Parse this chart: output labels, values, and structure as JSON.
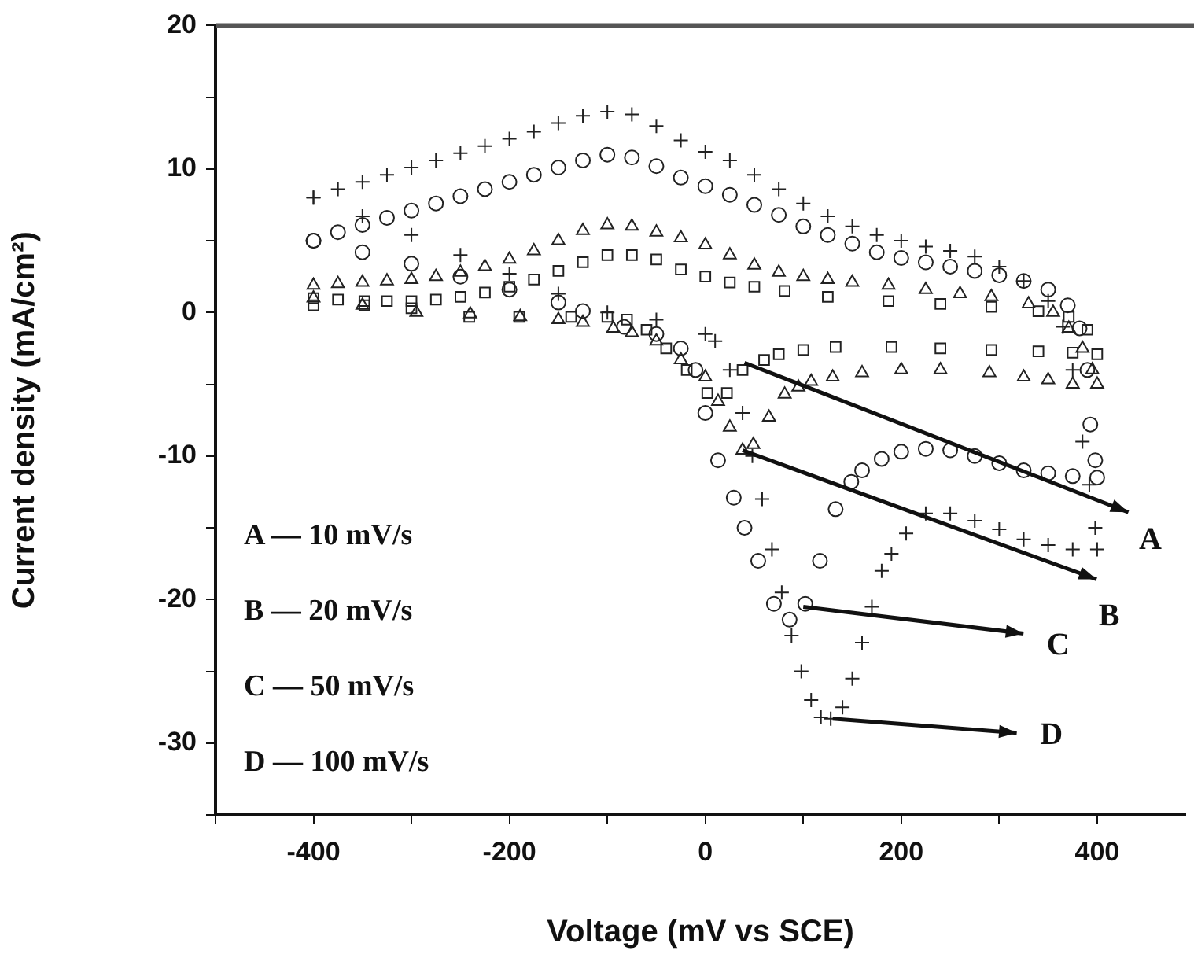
{
  "chart_data": {
    "type": "scatter",
    "xlabel": "Voltage (mV vs SCE)",
    "ylabel": "Current density (mA/cm²)",
    "xlim": [
      -500,
      490
    ],
    "xticks": [
      {
        "value": -500,
        "label": null
      },
      -400,
      {
        "value": -300,
        "label": null
      },
      -200,
      {
        "value": -100,
        "label": null
      },
      0,
      {
        "value": 100,
        "label": null
      },
      200,
      {
        "value": 300,
        "label": null
      },
      400
    ],
    "ylim": [
      -35,
      20
    ],
    "yticks": [
      {
        "value": -35,
        "label": null
      },
      -30,
      {
        "value": -25,
        "label": null
      },
      -20,
      {
        "value": -15,
        "label": null
      },
      -10,
      {
        "value": -5,
        "label": null
      },
      0,
      {
        "value": 5,
        "label": null
      },
      10,
      {
        "value": 15,
        "label": null
      },
      20
    ],
    "grid": false,
    "legend": false,
    "series": [
      {
        "color": "#222222",
        "marker": "square",
        "x": [
          -400,
          -375,
          -348,
          -325,
          -300,
          -275,
          -250,
          -225,
          -200,
          -175,
          -150,
          -125,
          -100,
          -75,
          -50,
          -25,
          0,
          25,
          50,
          81,
          125,
          187,
          240,
          292,
          340,
          371,
          390,
          400,
          375,
          340,
          292,
          240,
          190,
          133,
          100,
          75,
          60,
          38,
          22,
          2,
          -19,
          -40,
          -60,
          -80,
          -100,
          -137,
          -190,
          -241,
          -300,
          -348,
          -400
        ],
        "values": [
          1,
          0.9,
          0.8,
          0.8,
          0.8,
          0.9,
          1.1,
          1.4,
          1.8,
          2.3,
          2.9,
          3.5,
          4,
          4,
          3.7,
          3,
          2.5,
          2.1,
          1.8,
          1.5,
          1.1,
          0.8,
          0.6,
          0.4,
          0.1,
          -0.3,
          -1.2,
          -2.9,
          -2.8,
          -2.7,
          -2.6,
          -2.5,
          -2.4,
          -2.4,
          -2.6,
          -2.9,
          -3.3,
          -4,
          -5.6,
          -5.6,
          -4,
          -2.5,
          -1.2,
          -0.5,
          -0.3,
          -0.3,
          -0.3,
          -0.3,
          0.3,
          0.5,
          0.5
        ]
      },
      {
        "color": "#222222",
        "marker": "triangle",
        "x": [
          -400,
          -375,
          -350,
          -325,
          -300,
          -275,
          -250,
          -225,
          -200,
          -175,
          -150,
          -125,
          -100,
          -75,
          -50,
          -25,
          0,
          25,
          50,
          75,
          100,
          125,
          150,
          187,
          225,
          260,
          292,
          330,
          355,
          371,
          385,
          395,
          400,
          375,
          350,
          325,
          290,
          240,
          200,
          160,
          130,
          108,
          95,
          81,
          65,
          49,
          38,
          25,
          13,
          0,
          -25,
          -50,
          -75,
          -94,
          -125,
          -150,
          -189,
          -240,
          -295,
          -350,
          -400
        ],
        "values": [
          1.9,
          2,
          2.1,
          2.2,
          2.3,
          2.5,
          2.8,
          3.2,
          3.7,
          4.3,
          5,
          5.7,
          6.1,
          6,
          5.6,
          5.2,
          4.7,
          4,
          3.3,
          2.8,
          2.5,
          2.3,
          2.1,
          1.9,
          1.6,
          1.3,
          1.1,
          0.6,
          0,
          -1.1,
          -2.5,
          -4,
          -5,
          -5,
          -4.7,
          -4.5,
          -4.2,
          -4,
          -4,
          -4.2,
          -4.5,
          -4.8,
          -5.2,
          -5.7,
          -7.3,
          -9.2,
          -9.6,
          -8,
          -6.2,
          -4.5,
          -3.3,
          -2,
          -1.4,
          -1.1,
          -0.7,
          -0.5,
          -0.3,
          -0.1,
          0,
          0.5,
          1
        ]
      },
      {
        "color": "#222222",
        "marker": "circle",
        "x": [
          -400,
          -375,
          -350,
          -325,
          -300,
          -275,
          -250,
          -225,
          -200,
          -175,
          -150,
          -125,
          -100,
          -75,
          -50,
          -25,
          0,
          25,
          50,
          75,
          100,
          125,
          150,
          175,
          200,
          225,
          250,
          275,
          300,
          325,
          350,
          370,
          382,
          390,
          393,
          398,
          400,
          375,
          350,
          325,
          300,
          275,
          250,
          225,
          200,
          180,
          160,
          149,
          133,
          117,
          102,
          86,
          70,
          54,
          40,
          29,
          13,
          0,
          -10,
          -25,
          -50,
          -83,
          -125,
          -150,
          -200,
          -250,
          -300,
          -350,
          -400
        ],
        "values": [
          5,
          5.6,
          6.1,
          6.6,
          7.1,
          7.6,
          8.1,
          8.6,
          9.1,
          9.6,
          10.1,
          10.6,
          11,
          10.8,
          10.2,
          9.4,
          8.8,
          8.2,
          7.5,
          6.8,
          6,
          5.4,
          4.8,
          4.2,
          3.8,
          3.5,
          3.2,
          2.9,
          2.6,
          2.2,
          1.6,
          0.5,
          -1.1,
          -4,
          -7.8,
          -10.3,
          -11.5,
          -11.4,
          -11.2,
          -11,
          -10.5,
          -10,
          -9.6,
          -9.5,
          -9.7,
          -10.2,
          -11,
          -11.8,
          -13.7,
          -17.3,
          -20.3,
          -21.4,
          -20.3,
          -17.3,
          -15,
          -12.9,
          -10.3,
          -7,
          -4,
          -2.5,
          -1.5,
          -1,
          0.1,
          0.7,
          1.6,
          2.5,
          3.4,
          4.2,
          5
        ]
      },
      {
        "color": "#222222",
        "marker": "cross",
        "x": [
          -400,
          -375,
          -350,
          -325,
          -300,
          -275,
          -250,
          -225,
          -200,
          -175,
          -150,
          -125,
          -100,
          -75,
          -50,
          -25,
          0,
          25,
          50,
          75,
          100,
          125,
          150,
          175,
          200,
          225,
          250,
          275,
          300,
          325,
          350,
          365,
          375,
          385,
          392,
          398,
          400,
          375,
          350,
          325,
          300,
          275,
          250,
          225,
          205,
          190,
          180,
          170,
          160,
          150,
          140,
          128,
          118,
          108,
          98,
          88,
          78,
          68,
          58,
          48,
          38,
          25,
          10,
          0,
          -50,
          -100,
          -150,
          -200,
          -250,
          -300,
          -350,
          -400
        ],
        "values": [
          8,
          8.6,
          9.1,
          9.6,
          10.1,
          10.6,
          11.1,
          11.6,
          12.1,
          12.6,
          13.2,
          13.7,
          14,
          13.8,
          13,
          12,
          11.2,
          10.6,
          9.6,
          8.6,
          7.6,
          6.7,
          6,
          5.4,
          5,
          4.6,
          4.3,
          3.9,
          3.2,
          2.2,
          0.8,
          -1,
          -4,
          -9,
          -12,
          -15,
          -16.5,
          -16.5,
          -16.2,
          -15.8,
          -15.1,
          -14.5,
          -14,
          -14,
          -15.4,
          -16.8,
          -18,
          -20.5,
          -23,
          -25.5,
          -27.5,
          -28.3,
          -28.2,
          -27,
          -25,
          -22.5,
          -19.5,
          -16.5,
          -13,
          -10,
          -7,
          -4,
          -2,
          -1.5,
          -0.5,
          0,
          1.3,
          2.7,
          4,
          5.4,
          6.7,
          8
        ]
      }
    ],
    "annotations": [
      {
        "text": "A",
        "x": 40,
        "y": -3.5
      },
      {
        "text": "B",
        "x": 38,
        "y": -9.6
      },
      {
        "text": "C",
        "x": 100,
        "y": -20.5
      },
      {
        "text": "D",
        "x": 130,
        "y": -28.3
      },
      "A — 10 mV/s",
      "B — 20 mV/s",
      "C — 50 mV/s",
      "D — 100 mV/s"
    ]
  }
}
